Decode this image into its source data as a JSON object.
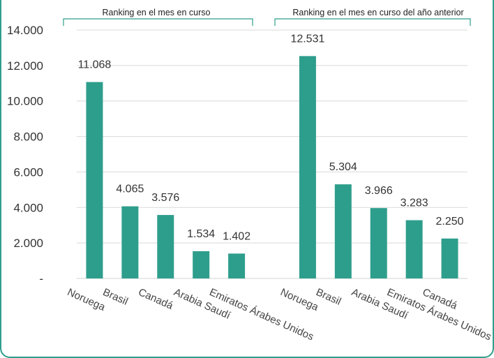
{
  "colors": {
    "bar": "#2e9e8c",
    "grid": "#d9d9d9",
    "accent": "#2e9e8c"
  },
  "chart_data": {
    "type": "bar",
    "ylim": [
      0,
      14000
    ],
    "yticks": [
      0,
      2000,
      4000,
      6000,
      8000,
      10000,
      12000,
      14000
    ],
    "ytick_labels": [
      "-",
      "2.000",
      "4.000",
      "6.000",
      "8.000",
      "10.000",
      "12.000",
      "14.000"
    ],
    "grid": true,
    "groups": [
      {
        "title": "Ranking en el mes en curso",
        "categories": [
          "Noruega",
          "Brasil",
          "Canadá",
          "Arabia Saudí",
          "Emiratos Árabes Unidos"
        ],
        "values": [
          11068,
          4065,
          3576,
          1534,
          1402
        ],
        "value_labels": [
          "11.068",
          "4.065",
          "3.576",
          "1.534",
          "1.402"
        ]
      },
      {
        "title": "Ranking en el mes en curso del año anterior",
        "categories": [
          "Noruega",
          "Brasil",
          "Arabia Saudí",
          "Emiratos Árabes Unidos",
          "Canadá"
        ],
        "values": [
          12531,
          5304,
          3966,
          3283,
          2250
        ],
        "value_labels": [
          "12.531",
          "5.304",
          "3.966",
          "3.283",
          "2.250"
        ]
      }
    ]
  }
}
